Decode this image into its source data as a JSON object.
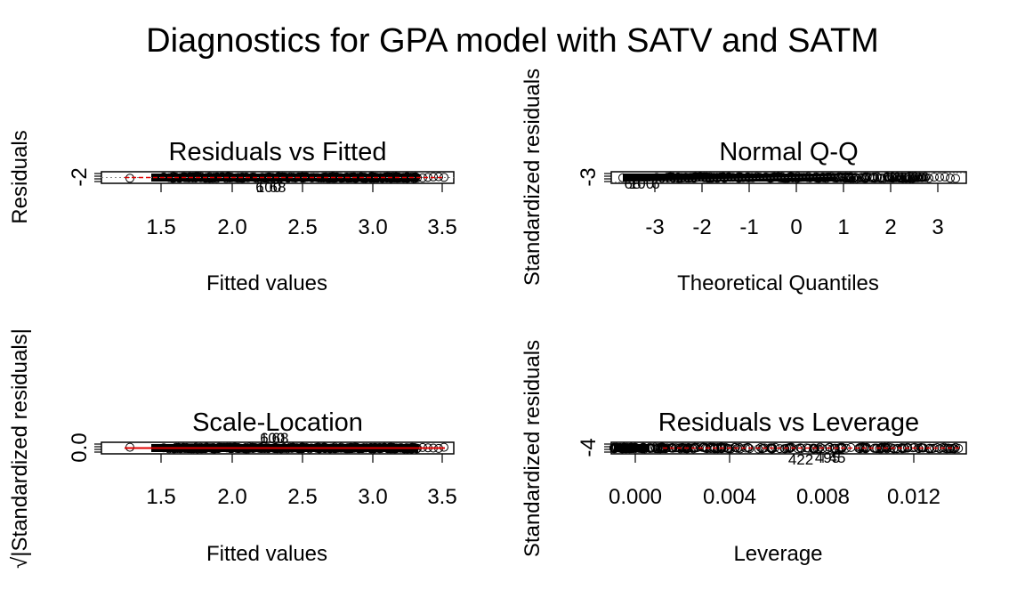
{
  "figure": {
    "title": "Diagnostics for GPA model with SATV and SATM"
  },
  "chart_data": [
    {
      "type": "scatter",
      "title": "Residuals vs Fitted",
      "xlabel": "Fitted values",
      "ylabel": "Residuals",
      "xticks": [
        "1.5",
        "2.0",
        "2.5",
        "3.0",
        "3.5"
      ],
      "yticks": [
        "-2"
      ],
      "point_labels": [
        "6",
        "100",
        "68"
      ],
      "reference_line": "dashed grey at 0",
      "smoother": "red dashed"
    },
    {
      "type": "scatter",
      "title": "Normal Q-Q",
      "xlabel": "Theoretical Quantiles",
      "ylabel": "Standardized residuals",
      "xticks": [
        "-3",
        "-2",
        "-1",
        "0",
        "1",
        "2",
        "3"
      ],
      "yticks": [
        "-3"
      ],
      "point_labels": [
        "68",
        "100",
        "6"
      ],
      "reference_line": "dotted diagonal"
    },
    {
      "type": "scatter",
      "title": "Scale-Location",
      "xlabel": "Fitted values",
      "ylabel": "√|Standardized residuals|",
      "xticks": [
        "1.5",
        "2.0",
        "2.5",
        "3.0",
        "3.5"
      ],
      "yticks": [
        "0.0"
      ],
      "point_labels": [
        "6",
        "100",
        "68"
      ],
      "smoother": "red solid"
    },
    {
      "type": "scatter",
      "title": "Residuals vs Leverage",
      "xlabel": "Leverage",
      "ylabel": "Standardized residuals",
      "xticks": [
        "0.000",
        "0.004",
        "0.008",
        "0.012"
      ],
      "yticks": [
        "-4"
      ],
      "point_labels": [
        "422",
        "495",
        "45"
      ],
      "smoother": "red dashed"
    }
  ]
}
